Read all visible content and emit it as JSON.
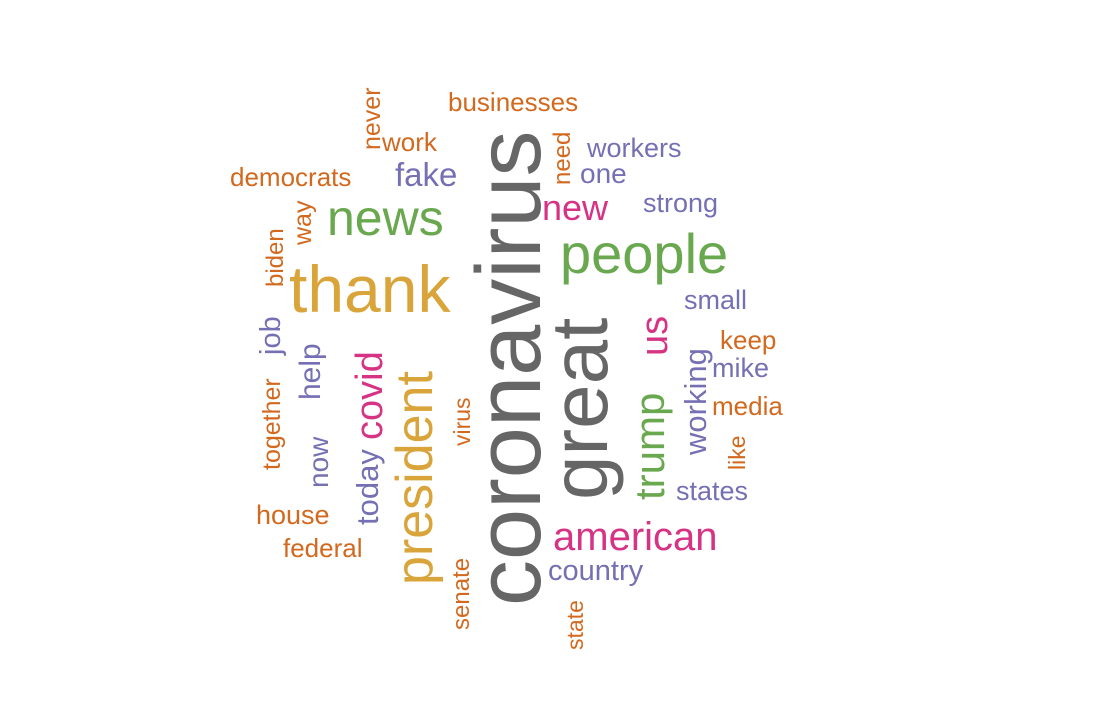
{
  "palette": {
    "orange": "#D2691E",
    "purple": "#7570B3",
    "green": "#6AA84F",
    "mustard": "#D9A43A",
    "magenta": "#D63384",
    "gray": "#666666"
  },
  "words": [
    {
      "text": "coronavirus",
      "color": "gray"
    },
    {
      "text": "great",
      "color": "gray"
    },
    {
      "text": "thank",
      "color": "mustard"
    },
    {
      "text": "president",
      "color": "mustard"
    },
    {
      "text": "people",
      "color": "green"
    },
    {
      "text": "news",
      "color": "green"
    },
    {
      "text": "trump",
      "color": "green"
    },
    {
      "text": "american",
      "color": "magenta"
    },
    {
      "text": "covid",
      "color": "magenta"
    },
    {
      "text": "us",
      "color": "magenta"
    },
    {
      "text": "new",
      "color": "magenta"
    },
    {
      "text": "today",
      "color": "purple"
    },
    {
      "text": "fake",
      "color": "purple"
    },
    {
      "text": "working",
      "color": "purple"
    },
    {
      "text": "help",
      "color": "purple"
    },
    {
      "text": "now",
      "color": "purple"
    },
    {
      "text": "job",
      "color": "purple"
    },
    {
      "text": "country",
      "color": "purple"
    },
    {
      "text": "states",
      "color": "purple"
    },
    {
      "text": "workers",
      "color": "purple"
    },
    {
      "text": "one",
      "color": "purple"
    },
    {
      "text": "strong",
      "color": "purple"
    },
    {
      "text": "small",
      "color": "purple"
    },
    {
      "text": "mike",
      "color": "purple"
    },
    {
      "text": "businesses",
      "color": "orange"
    },
    {
      "text": "democrats",
      "color": "orange"
    },
    {
      "text": "work",
      "color": "orange"
    },
    {
      "text": "never",
      "color": "orange"
    },
    {
      "text": "need",
      "color": "orange"
    },
    {
      "text": "way",
      "color": "orange"
    },
    {
      "text": "biden",
      "color": "orange"
    },
    {
      "text": "together",
      "color": "orange"
    },
    {
      "text": "house",
      "color": "orange"
    },
    {
      "text": "federal",
      "color": "orange"
    },
    {
      "text": "senate",
      "color": "orange"
    },
    {
      "text": "virus",
      "color": "orange"
    },
    {
      "text": "state",
      "color": "orange"
    },
    {
      "text": "keep",
      "color": "orange"
    },
    {
      "text": "media",
      "color": "orange"
    },
    {
      "text": "like",
      "color": "orange"
    }
  ]
}
